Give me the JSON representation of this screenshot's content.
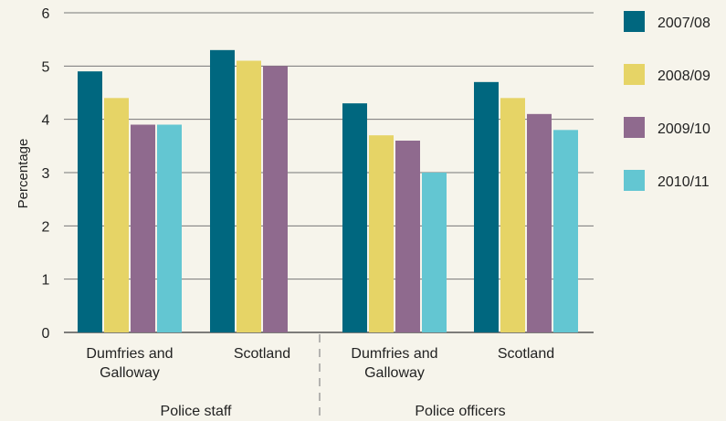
{
  "chart_data": {
    "type": "bar",
    "ylabel": "Percentage",
    "ylim": [
      0,
      6
    ],
    "yticks": [
      0,
      1,
      2,
      3,
      4,
      5,
      6
    ],
    "grid": true,
    "legend_position": "right",
    "groups": [
      {
        "label": "Police staff",
        "categories": [
          {
            "label_lines": [
              "Dumfries and",
              "Galloway"
            ],
            "values": [
              4.9,
              4.4,
              3.9,
              3.9
            ]
          },
          {
            "label_lines": [
              "Scotland"
            ],
            "values": [
              5.3,
              5.1,
              5.0,
              null
            ]
          }
        ]
      },
      {
        "label": "Police officers",
        "categories": [
          {
            "label_lines": [
              "Dumfries and",
              "Galloway"
            ],
            "values": [
              4.3,
              3.7,
              3.6,
              3.0
            ]
          },
          {
            "label_lines": [
              "Scotland"
            ],
            "values": [
              4.7,
              4.4,
              4.1,
              3.8
            ]
          }
        ]
      }
    ],
    "series": [
      {
        "name": "2007/08",
        "color": "#00677f"
      },
      {
        "name": "2008/09",
        "color": "#e6d466"
      },
      {
        "name": "2009/10",
        "color": "#8f6a8e"
      },
      {
        "name": "2010/11",
        "color": "#63c6d2"
      }
    ]
  }
}
